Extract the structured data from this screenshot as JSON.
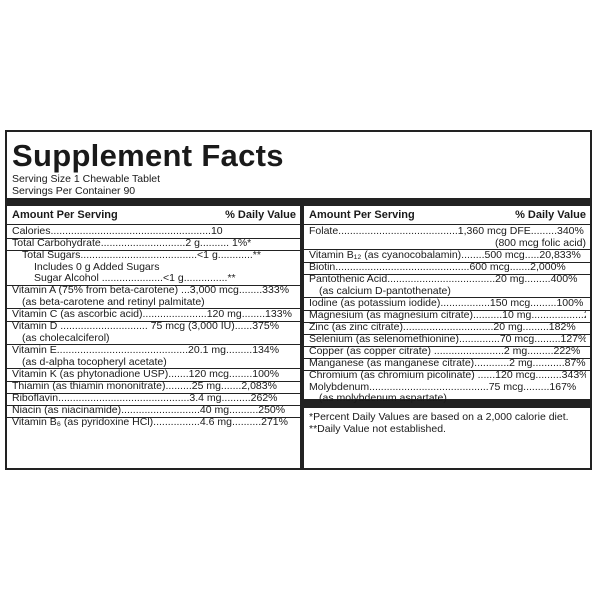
{
  "title": "Supplement Facts",
  "serving_size": "Serving Size 1 Chewable Tablet",
  "servings_per_container": "Servings Per Container 90",
  "headers": {
    "amount": "Amount Per Serving",
    "dv": "% Daily Value"
  },
  "left_rows": [
    [
      "Calories.......................................................10"
    ],
    [
      "Total Carbohydrate.............................2 g.......... 1%*"
    ],
    [
      "Total Sugars........................................<1 g............**",
      "Includes 0 g Added Sugars",
      "Sugar Alcohol .....................<1 g...............**"
    ],
    [
      "Vitamin A (75% from beta-carotene) ...3,000 mcg........333%",
      "(as beta-carotene and retinyl palmitate)"
    ],
    [
      "Vitamin C (as ascorbic acid)......................120 mg........133%"
    ],
    [
      "Vitamin D .............................. 75 mcg (3,000 IU)......375%",
      "(as cholecalciferol)"
    ],
    [
      "Vitamin E.............................................20.1 mg.........134%",
      "(as d-alpha tocopheryl acetate)"
    ],
    [
      "Vitamin K (as phytonadione USP).......120 mcg........100%"
    ],
    [
      "Thiamin (as thiamin mononitrate).........25 mg.......2,083%"
    ],
    [
      "Riboflavin.............................................3.4 mg..........262%"
    ],
    [
      "Niacin (as niacinamide)...........................40 mg..........250%"
    ],
    [
      "Vitamin B₆ (as pyridoxine HCl)................4.6 mg..........271%"
    ]
  ],
  "right_rows": [
    [
      "Folate.........................................1,360 mcg DFE.........340%",
      "(800 mcg folic acid)"
    ],
    [
      "Vitamin B₁₂ (as cyanocobalamin)........500 mcg.....20,833%"
    ],
    [
      "Biotin..............................................600 mcg.......2,000%"
    ],
    [
      "Pantothenic Acid.....................................20 mg.........400%",
      "(as calcium D-pantothenate)"
    ],
    [
      "Iodine (as potassium iodide).................150 mcg.........100%"
    ],
    [
      "Magnesium (as magnesium citrate)..........10 mg..................2%"
    ],
    [
      "Zinc (as zinc citrate)...............................20 mg.........182%"
    ],
    [
      "Selenium (as selenomethionine)..............70 mcg.........127%"
    ],
    [
      "Copper (as copper citrate) ........................2 mg.........222%"
    ],
    [
      "Manganese (as manganese citrate)............2 mg...........87%"
    ],
    [
      "Chromium (as chromium picolinate) ......120 mcg.........343%",
      "Molybdenum.........................................75 mcg.........167%",
      "(as molybdenum aspartate)"
    ]
  ],
  "footnotes": [
    "*Percent Daily Values are based on a 2,000 calorie diet.",
    "**Daily Value not established."
  ]
}
